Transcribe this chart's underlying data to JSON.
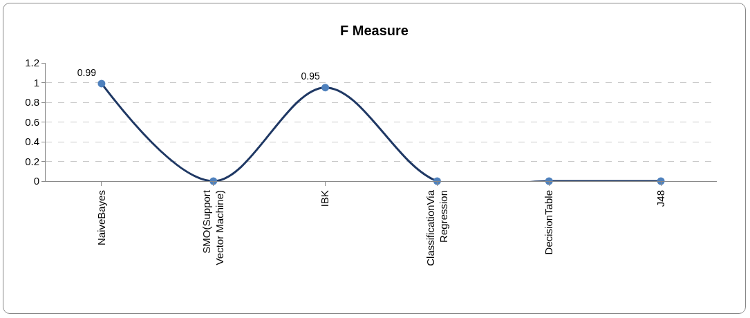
{
  "chart_data": {
    "type": "line",
    "title": "F Measure",
    "categories": [
      "NaiveBayes",
      "SMO(Support Vector Machine)",
      "IBK",
      "ClassificationVia Regression",
      "DecisionTable",
      "J48"
    ],
    "series": [
      {
        "color": "#1f3864",
        "values": [
          0.99,
          0,
          0.95,
          0,
          0,
          0
        ],
        "value_labels": [
          "0.99",
          null,
          "0.95",
          null,
          null,
          null
        ]
      }
    ],
    "ylim": [
      0,
      1.2
    ],
    "yticks": [
      0,
      0.2,
      0.4,
      0.6,
      0.8,
      1,
      1.2
    ],
    "grid": "y",
    "marker": "circle",
    "line_style": "solid"
  }
}
